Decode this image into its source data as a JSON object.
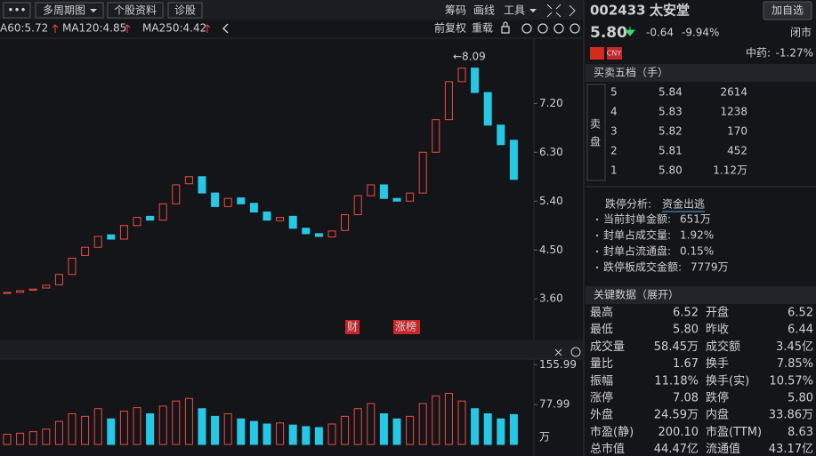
{
  "toolbar": {
    "menu": "•••",
    "period": "多周期图",
    "profile": "个股资料",
    "diagnose": "诊股",
    "chips": "筹码",
    "drawing": "画线",
    "tools": "工具"
  },
  "ma_labels": [
    "A60:5.72",
    "MA120:4.85",
    "MA250:4.42"
  ],
  "chart_controls": {
    "adjust": "前复权",
    "reload": "重载"
  },
  "chart_data": {
    "type": "candlestick",
    "open": [
      3.7,
      3.72,
      3.76,
      3.8,
      3.86,
      4.05,
      4.4,
      4.55,
      4.78,
      4.7,
      4.95,
      5.12,
      5.05,
      5.35,
      5.72,
      5.85,
      5.55,
      5.3,
      5.46,
      5.36,
      5.2,
      5.04,
      5.12,
      4.9,
      4.8,
      4.74,
      4.86,
      5.15,
      5.5,
      5.7,
      5.45,
      5.4,
      5.55,
      6.3,
      6.9,
      7.6,
      7.85,
      7.4,
      6.8,
      6.52
    ],
    "close": [
      3.72,
      3.75,
      3.78,
      3.85,
      4.05,
      4.35,
      4.55,
      4.75,
      4.7,
      4.95,
      5.1,
      5.05,
      5.35,
      5.7,
      5.85,
      5.55,
      5.3,
      5.45,
      5.35,
      5.2,
      5.05,
      5.1,
      4.9,
      4.8,
      4.75,
      4.85,
      5.15,
      5.5,
      5.7,
      5.45,
      5.4,
      5.55,
      6.3,
      6.9,
      7.6,
      7.85,
      7.4,
      6.8,
      6.44,
      5.8
    ],
    "ylim": [
      2.9,
      8.4
    ],
    "yticks": [
      {
        "value": 7.2,
        "label": "7.20"
      },
      {
        "value": 6.3,
        "label": "6.30"
      },
      {
        "value": 5.4,
        "label": "5.40"
      },
      {
        "value": 4.5,
        "label": "4.50"
      },
      {
        "value": 3.6,
        "label": "3.60"
      }
    ],
    "annotation": "←8.09",
    "markers": [
      "财",
      "涨榜"
    ],
    "volume": {
      "values": [
        20,
        22,
        25,
        30,
        45,
        60,
        55,
        70,
        50,
        65,
        72,
        60,
        75,
        85,
        90,
        70,
        55,
        60,
        50,
        45,
        40,
        42,
        38,
        35,
        33,
        40,
        55,
        70,
        80,
        60,
        50,
        55,
        80,
        95,
        100,
        85,
        70,
        60,
        50,
        58.45
      ],
      "ylim": [
        0,
        160
      ],
      "yticks": [
        155.99,
        77.99
      ],
      "unit": "万"
    }
  },
  "header": {
    "code": "002433",
    "name": "太安堂",
    "button": "加自选"
  },
  "quote": {
    "price": "5.80",
    "change": "-0.64",
    "pct": "-9.94%",
    "status": "闭市",
    "currency": "CNY",
    "sector": "中药:",
    "sector_pct": "-1.27%"
  },
  "order_book": {
    "title": "买卖五档（手）",
    "side": [
      "卖",
      "盘"
    ],
    "rows": [
      [
        "5",
        "5.84",
        "2614"
      ],
      [
        "4",
        "5.83",
        "1238"
      ],
      [
        "3",
        "5.82",
        "170"
      ],
      [
        "2",
        "5.81",
        "452"
      ],
      [
        "1",
        "5.80",
        "1.12万"
      ]
    ]
  },
  "limit": {
    "title": "跌停分析:",
    "tag": "资金出逃",
    "items": [
      [
        "当前封单金额:",
        "651万"
      ],
      [
        "封单占成交量:",
        "1.92%"
      ],
      [
        "封单占流通盘:",
        "0.15%"
      ],
      [
        "跌停板成交金额:",
        "7779万"
      ]
    ]
  },
  "key_data": {
    "title": "关键数据（展开）",
    "rows": [
      [
        "最高",
        "6.52",
        "开盘",
        "6.52"
      ],
      [
        "最低",
        "5.80",
        "昨收",
        "6.44"
      ],
      [
        "成交量",
        "58.45万",
        "成交额",
        "3.45亿"
      ],
      [
        "量比",
        "1.67",
        "换手",
        "7.85%"
      ],
      [
        "振幅",
        "11.18%",
        "换手(实)",
        "10.57%"
      ],
      [
        "涨停",
        "7.08",
        "跌停",
        "5.80"
      ],
      [
        "外盘",
        "24.59万",
        "内盘",
        "33.86万"
      ],
      [
        "市盈(静)",
        "200.10",
        "市盈(TTM)",
        "8.63"
      ],
      [
        "总市值",
        "44.47亿",
        "流通值",
        "43.17亿"
      ]
    ]
  }
}
